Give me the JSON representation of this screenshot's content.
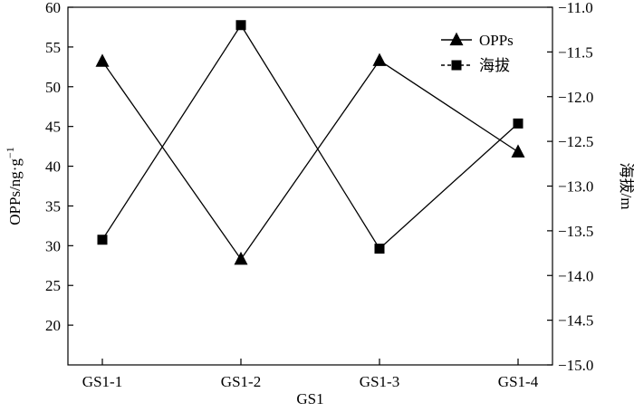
{
  "chart_data": {
    "type": "line",
    "categories": [
      "GS1-1",
      "GS1-2",
      "GS1-3",
      "GS1-4"
    ],
    "xlabel": "GS1",
    "ylabel_left": "OPPs/ng·g",
    "ylabel_left_sup": "−1",
    "ylabel_right": "海拔/m",
    "ylim_left": [
      15,
      60
    ],
    "yticks_left": [
      "20",
      "25",
      "30",
      "35",
      "40",
      "45",
      "50",
      "55",
      "60"
    ],
    "ylim_right": [
      -15.0,
      -11.0
    ],
    "yticks_right": [
      "−11.0",
      "−11.5",
      "−12.0",
      "−12.5",
      "−13.0",
      "−13.5",
      "−14.0",
      "−14.5",
      "−15.0"
    ],
    "grid": false,
    "legend_position": "top-right",
    "series": [
      {
        "name": "OPPs",
        "axis": "left",
        "marker": "triangle",
        "values": [
          53.2,
          28.3,
          53.3,
          41.8
        ]
      },
      {
        "name": "海拔",
        "axis": "right",
        "marker": "square",
        "values": [
          -13.6,
          -11.2,
          -13.7,
          -12.3
        ]
      }
    ]
  }
}
